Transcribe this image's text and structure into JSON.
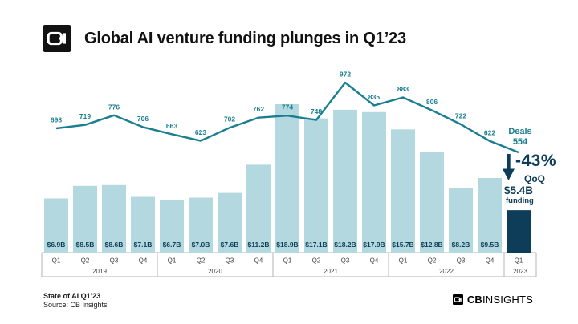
{
  "header": {
    "title": "Global AI venture funding plunges in Q1’23"
  },
  "colors": {
    "bar": "#b4d8e0",
    "bar_highlight": "#0e3d59",
    "line": "#1a7e91",
    "navy": "#0e3d59",
    "bar_label": "#0d3f54",
    "axis_border": "#b3b3b3",
    "axis_text": "#3c3c3c"
  },
  "chart_data": {
    "type": "bar",
    "subtype": "bar+line combo",
    "title": "Global AI venture funding plunges in Q1’23",
    "xlabel": "",
    "ylabel": "",
    "grid": false,
    "legend": "none",
    "categories": [
      "Q1",
      "Q2",
      "Q3",
      "Q4",
      "Q1",
      "Q2",
      "Q3",
      "Q4",
      "Q1",
      "Q2",
      "Q3",
      "Q4",
      "Q1",
      "Q2",
      "Q3",
      "Q4",
      "Q1"
    ],
    "year_groups": [
      {
        "label": "2019",
        "span": 4
      },
      {
        "label": "2020",
        "span": 4
      },
      {
        "label": "2021",
        "span": 4
      },
      {
        "label": "2022",
        "span": 4
      },
      {
        "label": "2023",
        "span": 1
      }
    ],
    "series": [
      {
        "name": "Funding ($B)",
        "type": "bar",
        "values": [
          6.9,
          8.5,
          8.6,
          7.1,
          6.7,
          7.0,
          7.6,
          11.2,
          18.9,
          17.1,
          18.2,
          17.9,
          15.7,
          12.8,
          8.2,
          9.5,
          5.4
        ],
        "labels": [
          "$6.9B",
          "$8.5B",
          "$8.6B",
          "$7.1B",
          "$6.7B",
          "$7.0B",
          "$7.6B",
          "$11.2B",
          "$18.9B",
          "$17.1B",
          "$18.2B",
          "$17.9B",
          "$15.7B",
          "$12.8B",
          "$8.2B",
          "$9.5B",
          null
        ]
      },
      {
        "name": "Deals",
        "type": "line",
        "values": [
          698,
          719,
          776,
          706,
          663,
          623,
          702,
          762,
          774,
          748,
          972,
          835,
          883,
          806,
          722,
          622,
          554
        ],
        "labels": [
          "698",
          "719",
          "776",
          "706",
          "663",
          "623",
          "702",
          "762",
          "774",
          "748",
          "972",
          "835",
          "883",
          "806",
          "722",
          "622",
          null
        ]
      }
    ],
    "highlight_index": 16
  },
  "annotations": {
    "deals_word": "Deals",
    "deals_value": "554",
    "pct_change": "-43%",
    "pct_period": "QoQ",
    "funding_value": "$5.4B",
    "funding_word": "funding"
  },
  "footer": {
    "report": "State of AI Q1’23",
    "source": "Source: CB Insights",
    "brand_cb": "CB",
    "brand_insights": "INSIGHTS"
  }
}
